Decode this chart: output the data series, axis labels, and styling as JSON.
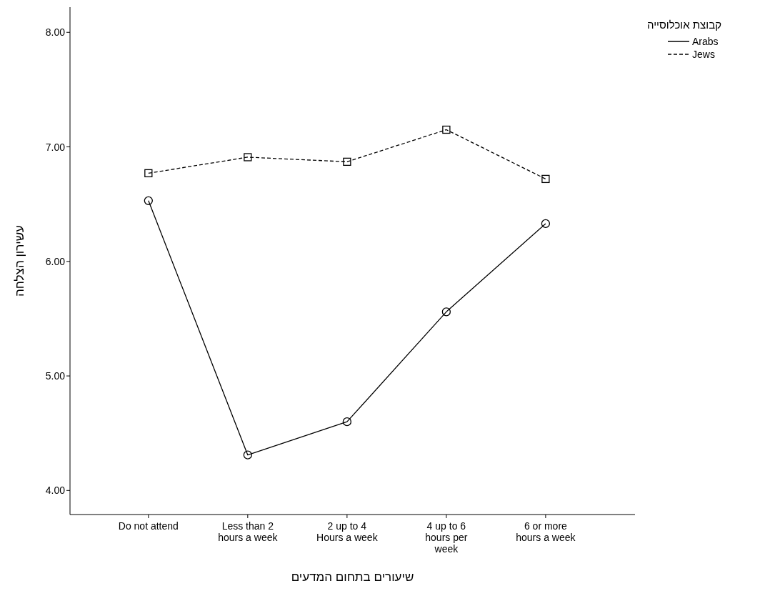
{
  "chart_data": {
    "type": "line",
    "xlabel": "שיעורים בתחום המדעים",
    "ylabel": "עשירון הצלחה",
    "legend_title": "קבוצת אוכלוסייה",
    "categories": [
      "Do not attend",
      "Less than 2 hours a week",
      "2 up to 4 Hours a week",
      "4 up to 6 hours per week",
      "6 or more hours a week"
    ],
    "series": [
      {
        "name": "Arabs",
        "color": "#000000",
        "line_style": "solid",
        "marker": "circle",
        "values": [
          6.53,
          4.31,
          4.6,
          5.56,
          6.33
        ]
      },
      {
        "name": "Jews",
        "color": "#000000",
        "line_style": "dashed",
        "marker": "square",
        "values": [
          6.77,
          6.91,
          6.87,
          7.15,
          6.72
        ]
      }
    ],
    "ylim": [
      3.79,
      8.22
    ],
    "yticks": [
      {
        "value": 4,
        "label": "4.00"
      },
      {
        "value": 5,
        "label": "5.00"
      },
      {
        "value": 6,
        "label": "6.00"
      },
      {
        "value": 7,
        "label": "7.00"
      },
      {
        "value": 8,
        "label": "8.00"
      }
    ],
    "grid": false,
    "legend": "top right"
  }
}
